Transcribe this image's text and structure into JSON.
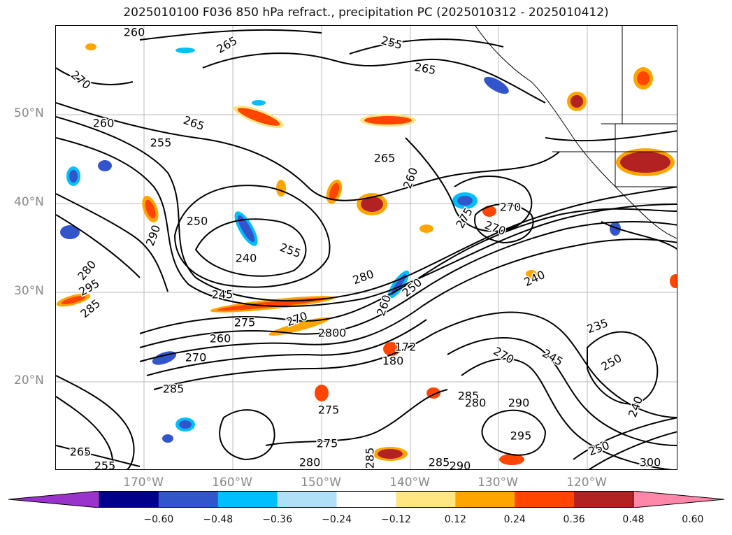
{
  "title": "2025010100 F036 850 hPa refract., precipitation PC (2025010312 - 2025010412)",
  "map": {
    "lat_labels": [
      "50°N",
      "40°N",
      "30°N",
      "20°N"
    ],
    "lon_labels": [
      "170°W",
      "160°W",
      "150°W",
      "140°W",
      "130°W",
      "120°W"
    ],
    "contour_labels": [
      "260",
      "265",
      "255",
      "265",
      "260",
      "255",
      "265",
      "270",
      "290",
      "250",
      "240",
      "255",
      "260",
      "280",
      "270",
      "275",
      "280",
      "295",
      "285",
      "245",
      "275",
      "270",
      "260",
      "280",
      "260",
      "250",
      "240",
      "285",
      "280",
      "275",
      "285",
      "280",
      "290",
      "295",
      "250",
      "235",
      "245",
      "270",
      "250",
      "240",
      "300",
      "265",
      "270",
      "285",
      "275",
      "280",
      "285",
      "290",
      "180",
      "172",
      "265",
      "255",
      "270"
    ]
  },
  "colorbar": {
    "ticks": [
      "−0.60",
      "−0.48",
      "−0.36",
      "−0.24",
      "−0.12",
      "0.12",
      "0.24",
      "0.36",
      "0.48",
      "0.60"
    ],
    "colors": [
      "#9933cc",
      "#00008b",
      "#3355cc",
      "#00bfff",
      "#b0e0f8",
      "#ffffff",
      "#ffe680",
      "#ffa500",
      "#ff4500",
      "#b22222",
      "#ff88aa"
    ]
  }
}
